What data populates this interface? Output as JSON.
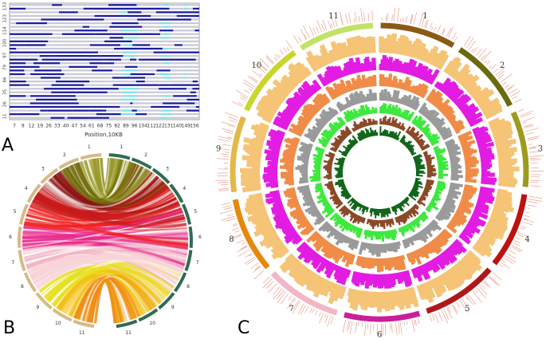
{
  "panel_a": {
    "label": "A",
    "x_axis_title": "Position,10KB",
    "x_ticks": [
      "7",
      "9",
      "12",
      "19",
      "26",
      "33",
      "40",
      "47",
      "54",
      "61",
      "68",
      "75",
      "82",
      "89",
      "96",
      "104",
      "112",
      "122",
      "131",
      "140",
      "149",
      "156"
    ],
    "y_ticks": [
      "11",
      "26",
      "35",
      "66",
      "79",
      "97",
      "100",
      "114",
      "123",
      "133"
    ]
  },
  "panel_b": {
    "label": "B",
    "left_labels": [
      "1",
      "2",
      "3",
      "4",
      "5",
      "6",
      "7",
      "8",
      "9",
      "10",
      "11"
    ],
    "right_labels": [
      "1",
      "2",
      "3",
      "4",
      "5",
      "6",
      "7",
      "8",
      "9",
      "10",
      "11"
    ]
  },
  "panel_c": {
    "label": "C",
    "chromosomes": [
      "1",
      "2",
      "3",
      "4",
      "5",
      "6",
      "7",
      "8",
      "9",
      "10",
      "11"
    ]
  }
}
